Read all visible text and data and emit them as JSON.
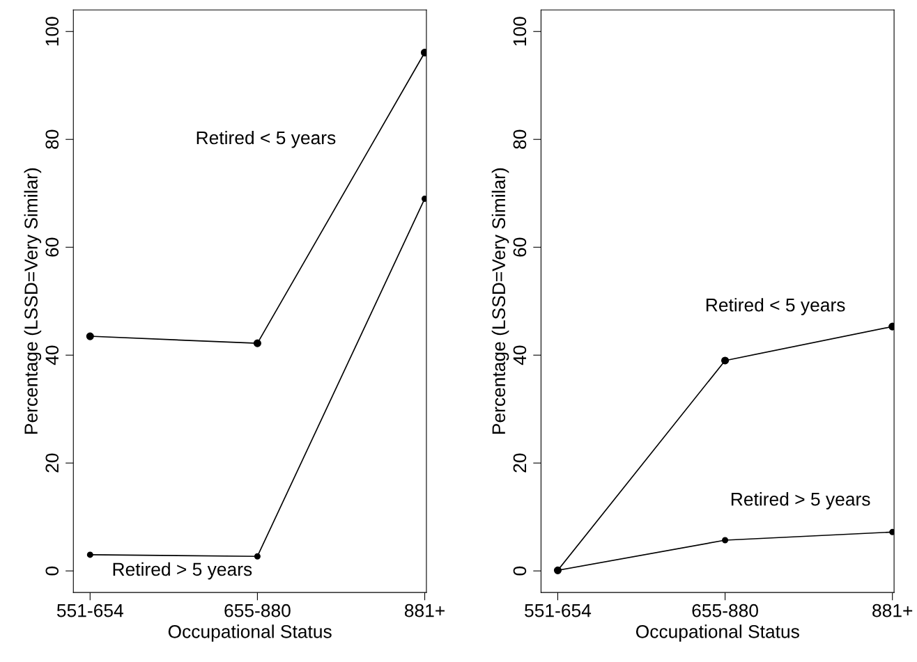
{
  "chart_data": [
    {
      "type": "line",
      "xlabel": "Occupational Status",
      "ylabel": "Percentage (LSSD=Very Similar)",
      "categories": [
        "551-654",
        "655-880",
        "881+"
      ],
      "ylim": [
        -4,
        104
      ],
      "yticks": [
        0,
        20,
        40,
        60,
        80,
        100
      ],
      "marker": "circle",
      "line_style": "solid",
      "grid": false,
      "legend": false,
      "series": [
        {
          "name": "Retired < 5 years",
          "color": "#000000",
          "values": [
            43.5,
            42.2,
            96.1
          ]
        },
        {
          "name": "Retired > 5 years",
          "color": "#000000",
          "values": [
            3.0,
            2.7,
            69.0
          ]
        }
      ]
    },
    {
      "type": "line",
      "xlabel": "Occupational Status",
      "ylabel": "Percentage (LSSD=Very Similar)",
      "categories": [
        "551-654",
        "655-880",
        "881+"
      ],
      "ylim": [
        -4,
        104
      ],
      "yticks": [
        0,
        20,
        40,
        60,
        80,
        100
      ],
      "marker": "circle",
      "line_style": "solid",
      "grid": false,
      "legend": false,
      "series": [
        {
          "name": "Retired < 5 years",
          "color": "#000000",
          "values": [
            0.1,
            39.0,
            45.3
          ]
        },
        {
          "name": "Retired > 5 years",
          "color": "#000000",
          "values": [
            0.1,
            5.7,
            7.2
          ]
        }
      ]
    }
  ]
}
